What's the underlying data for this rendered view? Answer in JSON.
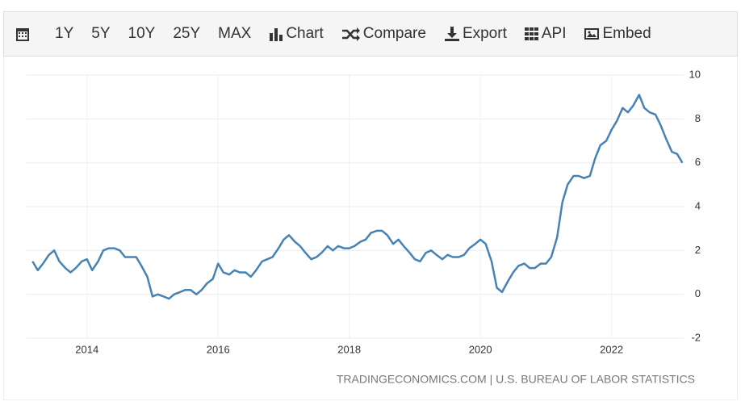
{
  "toolbar": {
    "ranges": [
      "1Y",
      "5Y",
      "10Y",
      "25Y",
      "MAX"
    ],
    "actions": [
      "Chart",
      "Compare",
      "Export",
      "API",
      "Embed"
    ]
  },
  "chart_data": {
    "type": "line",
    "source": "TRADINGECONOMICS.COM | U.S. BUREAU OF LABOR STATISTICS",
    "color": "#4682b4",
    "grid": true,
    "xlim": [
      2013.08,
      2023.1
    ],
    "xticks": [
      2014,
      2016,
      2018,
      2020,
      2022
    ],
    "ylim": [
      -2,
      10
    ],
    "yticks": [
      -2,
      0,
      2,
      4,
      6,
      8,
      10
    ],
    "x": [
      2013.17,
      2013.25,
      2013.33,
      2013.42,
      2013.5,
      2013.58,
      2013.67,
      2013.75,
      2013.83,
      2013.92,
      2014.0,
      2014.08,
      2014.17,
      2014.25,
      2014.33,
      2014.42,
      2014.5,
      2014.58,
      2014.67,
      2014.75,
      2014.83,
      2014.92,
      2015.0,
      2015.08,
      2015.17,
      2015.25,
      2015.33,
      2015.42,
      2015.5,
      2015.58,
      2015.67,
      2015.75,
      2015.83,
      2015.92,
      2016.0,
      2016.08,
      2016.17,
      2016.25,
      2016.33,
      2016.42,
      2016.5,
      2016.58,
      2016.67,
      2016.75,
      2016.83,
      2016.92,
      2017.0,
      2017.08,
      2017.17,
      2017.25,
      2017.33,
      2017.42,
      2017.5,
      2017.58,
      2017.67,
      2017.75,
      2017.83,
      2017.92,
      2018.0,
      2018.08,
      2018.17,
      2018.25,
      2018.33,
      2018.42,
      2018.5,
      2018.58,
      2018.67,
      2018.75,
      2018.83,
      2018.92,
      2019.0,
      2019.08,
      2019.17,
      2019.25,
      2019.33,
      2019.42,
      2019.5,
      2019.58,
      2019.67,
      2019.75,
      2019.83,
      2019.92,
      2020.0,
      2020.08,
      2020.17,
      2020.25,
      2020.33,
      2020.42,
      2020.5,
      2020.58,
      2020.67,
      2020.75,
      2020.83,
      2020.92,
      2021.0,
      2021.08,
      2021.17,
      2021.25,
      2021.33,
      2021.42,
      2021.5,
      2021.58,
      2021.67,
      2021.75,
      2021.83,
      2021.92,
      2022.0,
      2022.08,
      2022.17,
      2022.25,
      2022.33,
      2022.42,
      2022.5,
      2022.58,
      2022.67,
      2022.75,
      2022.83,
      2022.92,
      2023.0,
      2023.08
    ],
    "values": [
      1.5,
      1.1,
      1.4,
      1.8,
      2.0,
      1.5,
      1.2,
      1.0,
      1.2,
      1.5,
      1.6,
      1.1,
      1.5,
      2.0,
      2.1,
      2.1,
      2.0,
      1.7,
      1.7,
      1.7,
      1.3,
      0.8,
      -0.1,
      0.0,
      -0.1,
      -0.2,
      0.0,
      0.1,
      0.2,
      0.2,
      0.0,
      0.2,
      0.5,
      0.7,
      1.4,
      1.0,
      0.9,
      1.1,
      1.0,
      1.0,
      0.8,
      1.1,
      1.5,
      1.6,
      1.7,
      2.1,
      2.5,
      2.7,
      2.4,
      2.2,
      1.9,
      1.6,
      1.7,
      1.9,
      2.2,
      2.0,
      2.2,
      2.1,
      2.1,
      2.2,
      2.4,
      2.5,
      2.8,
      2.9,
      2.9,
      2.7,
      2.3,
      2.5,
      2.2,
      1.9,
      1.6,
      1.5,
      1.9,
      2.0,
      1.8,
      1.6,
      1.8,
      1.7,
      1.7,
      1.8,
      2.1,
      2.3,
      2.5,
      2.3,
      1.5,
      0.3,
      0.1,
      0.6,
      1.0,
      1.3,
      1.4,
      1.2,
      1.2,
      1.4,
      1.4,
      1.7,
      2.6,
      4.2,
      5.0,
      5.4,
      5.4,
      5.3,
      5.4,
      6.2,
      6.8,
      7.0,
      7.5,
      7.9,
      8.5,
      8.3,
      8.6,
      9.1,
      8.5,
      8.3,
      8.2,
      7.7,
      7.1,
      6.5,
      6.4,
      6.0
    ]
  }
}
